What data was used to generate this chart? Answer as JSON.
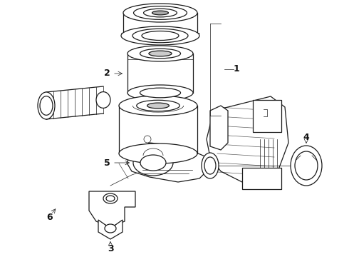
{
  "background_color": "#ffffff",
  "line_color": "#1a1a1a",
  "label_color": "#111111",
  "figsize": [
    4.9,
    3.6
  ],
  "dpi": 100,
  "lw_main": 0.9,
  "lw_thin": 0.5,
  "lw_thick": 1.3
}
